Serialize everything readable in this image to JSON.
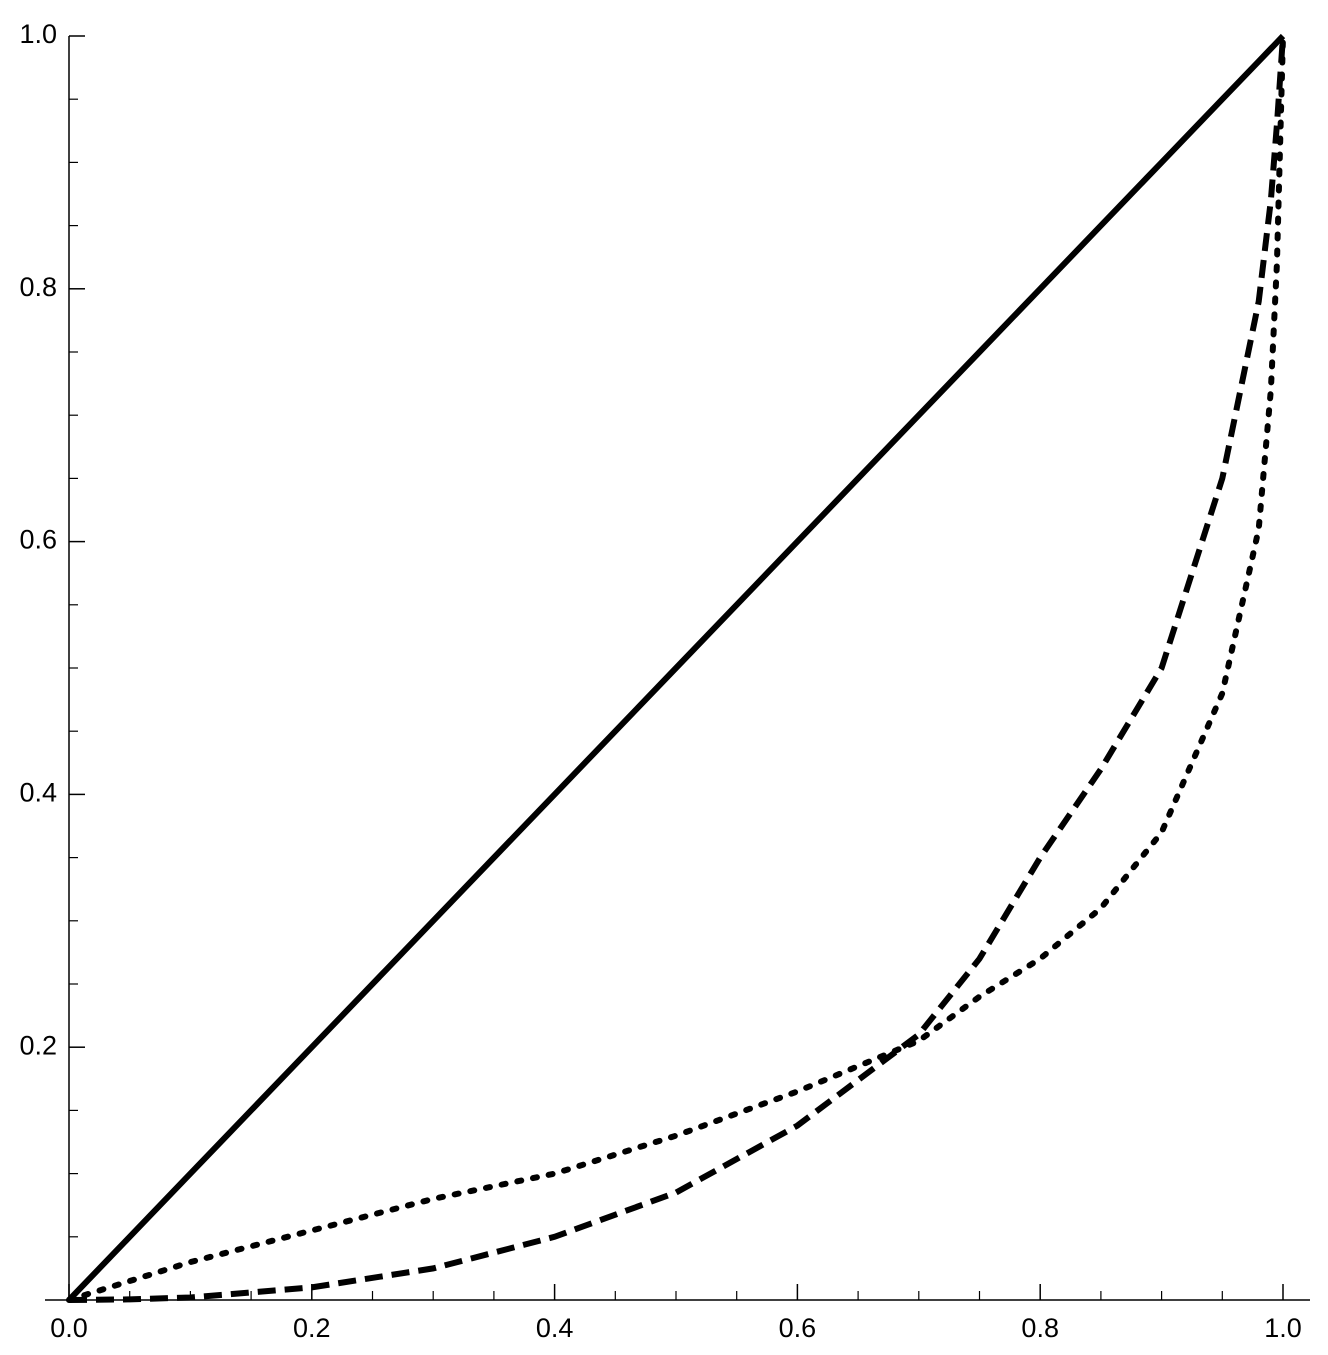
{
  "chart_data": {
    "type": "line",
    "x": [
      0,
      0.05,
      0.1,
      0.2,
      0.3,
      0.4,
      0.5,
      0.6,
      0.7,
      0.75,
      0.8,
      0.85,
      0.9,
      0.95,
      0.98,
      0.99,
      0.995,
      1
    ],
    "series": [
      {
        "color": "#000000",
        "style": "solid",
        "values": [
          0,
          0.05,
          0.1,
          0.2,
          0.3,
          0.4,
          0.5,
          0.6,
          0.7,
          0.75,
          0.8,
          0.85,
          0.9,
          0.95,
          0.98,
          0.99,
          0.995,
          1
        ]
      },
      {
        "color": "#000000",
        "style": "dashed",
        "values": [
          0,
          0.0005,
          0.002,
          0.01,
          0.025,
          0.05,
          0.085,
          0.138,
          0.21,
          0.27,
          0.35,
          0.42,
          0.5,
          0.65,
          0.79,
          0.87,
          0.93,
          1
        ]
      },
      {
        "color": "#000000",
        "style": "dotted",
        "values": [
          0,
          0.015,
          0.03,
          0.055,
          0.08,
          0.1,
          0.13,
          0.165,
          0.205,
          0.24,
          0.27,
          0.31,
          0.37,
          0.48,
          0.61,
          0.72,
          0.82,
          1
        ]
      }
    ],
    "xlim": [
      0,
      1
    ],
    "ylim": [
      0,
      1
    ],
    "xticks": [
      {
        "value": 0,
        "label": "0.0"
      },
      0.2,
      0.4,
      0.6,
      0.8,
      {
        "value": 1,
        "label": "1.0"
      }
    ],
    "yticks": [
      0.2,
      0.4,
      0.6,
      0.8,
      {
        "value": 1,
        "label": "1.0"
      }
    ],
    "xminorticks": [
      0.05,
      0.1,
      0.15,
      0.25,
      0.3,
      0.35,
      0.45,
      0.5,
      0.55,
      0.65,
      0.7,
      0.75,
      0.85,
      0.9,
      0.95
    ],
    "yminorticks": [
      0.05,
      0.1,
      0.15,
      0.25,
      0.3,
      0.35,
      0.45,
      0.5,
      0.55,
      0.65,
      0.7,
      0.75,
      0.85,
      0.9,
      0.95
    ],
    "grid": false
  }
}
